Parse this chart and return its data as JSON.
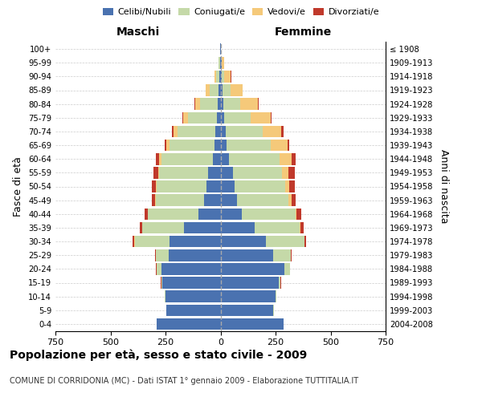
{
  "age_groups": [
    "0-4",
    "5-9",
    "10-14",
    "15-19",
    "20-24",
    "25-29",
    "30-34",
    "35-39",
    "40-44",
    "45-49",
    "50-54",
    "55-59",
    "60-64",
    "65-69",
    "70-74",
    "75-79",
    "80-84",
    "85-89",
    "90-94",
    "95-99",
    "100+"
  ],
  "birth_years": [
    "2004-2008",
    "1999-2003",
    "1994-1998",
    "1989-1993",
    "1984-1988",
    "1979-1983",
    "1974-1978",
    "1969-1973",
    "1964-1968",
    "1959-1963",
    "1954-1958",
    "1949-1953",
    "1944-1948",
    "1939-1943",
    "1934-1938",
    "1929-1933",
    "1924-1928",
    "1919-1923",
    "1914-1918",
    "1909-1913",
    "≤ 1908"
  ],
  "male_celibe": [
    290,
    245,
    250,
    265,
    270,
    235,
    230,
    165,
    100,
    75,
    65,
    55,
    35,
    28,
    22,
    18,
    12,
    8,
    5,
    3,
    2
  ],
  "male_coniugato": [
    1,
    2,
    2,
    5,
    20,
    60,
    160,
    190,
    230,
    220,
    225,
    225,
    235,
    205,
    175,
    130,
    80,
    40,
    15,
    5,
    1
  ],
  "male_vedovo": [
    0,
    0,
    0,
    0,
    0,
    0,
    1,
    1,
    1,
    2,
    3,
    4,
    8,
    14,
    18,
    20,
    22,
    18,
    8,
    2,
    0
  ],
  "male_divorziato": [
    0,
    0,
    0,
    1,
    2,
    3,
    8,
    12,
    14,
    15,
    18,
    20,
    14,
    8,
    6,
    5,
    3,
    2,
    1,
    0,
    0
  ],
  "female_celibe": [
    285,
    240,
    250,
    265,
    290,
    240,
    205,
    155,
    95,
    75,
    65,
    55,
    38,
    28,
    22,
    18,
    14,
    10,
    5,
    4,
    1
  ],
  "female_coniugato": [
    1,
    2,
    3,
    8,
    25,
    80,
    175,
    205,
    245,
    235,
    230,
    225,
    230,
    200,
    170,
    120,
    75,
    35,
    12,
    3,
    0
  ],
  "female_vedovo": [
    0,
    0,
    0,
    0,
    0,
    1,
    2,
    4,
    6,
    12,
    18,
    30,
    55,
    75,
    85,
    90,
    80,
    55,
    30,
    8,
    2
  ],
  "female_divorziato": [
    0,
    0,
    0,
    1,
    2,
    3,
    8,
    14,
    22,
    20,
    25,
    28,
    20,
    10,
    8,
    5,
    3,
    2,
    1,
    0,
    0
  ],
  "colors": {
    "celibe": "#4a72b0",
    "coniugato": "#c5d9a8",
    "vedovo": "#f5c97a",
    "divorziato": "#c0392b"
  },
  "title": "Popolazione per età, sesso e stato civile - 2009",
  "subtitle": "COMUNE DI CORRIDONIA (MC) - Dati ISTAT 1° gennaio 2009 - Elaborazione TUTTITALIA.IT",
  "xlabel_left": "Maschi",
  "xlabel_right": "Femmine",
  "ylabel_left": "Fasce di età",
  "ylabel_right": "Anni di nascita",
  "xlim": 750,
  "bg_color": "#ffffff",
  "grid_color": "#cccccc"
}
